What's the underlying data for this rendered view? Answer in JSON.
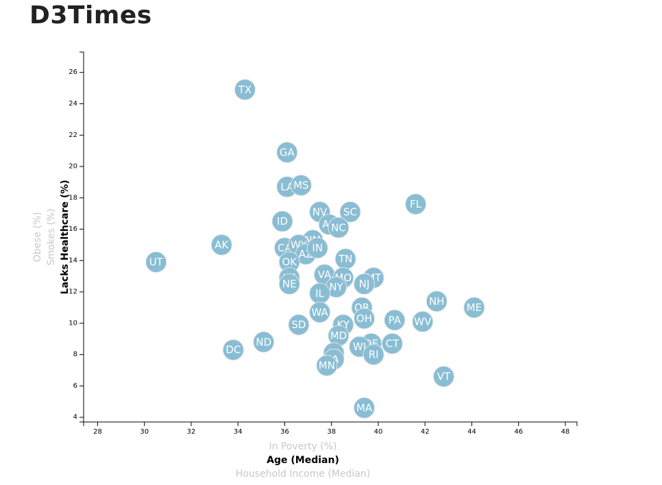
{
  "header": {
    "title": "D3Times"
  },
  "chart_data": {
    "type": "scatter",
    "xlim": [
      27.4,
      48.5
    ],
    "ylim": [
      3.7,
      27.3
    ],
    "x_ticks": [
      28,
      30,
      32,
      34,
      36,
      38,
      40,
      42,
      44,
      46,
      48
    ],
    "y_ticks": [
      4,
      6,
      8,
      10,
      12,
      14,
      16,
      18,
      20,
      22,
      24,
      26
    ],
    "x_axis_labels": [
      {
        "text": "In Poverty (%)",
        "active": false
      },
      {
        "text": "Age (Median)",
        "active": true
      },
      {
        "text": "Household Income (Median)",
        "active": false
      }
    ],
    "y_axis_labels": [
      {
        "text": "Obese (%)",
        "active": false
      },
      {
        "text": "Smokes (%)",
        "active": false
      },
      {
        "text": "Lacks Healthcare (%)",
        "active": true
      }
    ],
    "color": "#89bdd3",
    "points": [
      {
        "label": "TX",
        "x": 34.3,
        "y": 24.9
      },
      {
        "label": "GA",
        "x": 36.1,
        "y": 20.9
      },
      {
        "label": "LA",
        "x": 36.1,
        "y": 18.7
      },
      {
        "label": "MS",
        "x": 36.7,
        "y": 18.8
      },
      {
        "label": "FL",
        "x": 41.6,
        "y": 17.6
      },
      {
        "label": "NV",
        "x": 37.5,
        "y": 17.1
      },
      {
        "label": "SC",
        "x": 38.8,
        "y": 17.1
      },
      {
        "label": "AR",
        "x": 37.9,
        "y": 16.3
      },
      {
        "label": "NC",
        "x": 38.3,
        "y": 16.1
      },
      {
        "label": "ID",
        "x": 35.9,
        "y": 16.5
      },
      {
        "label": "AK",
        "x": 33.3,
        "y": 15.0
      },
      {
        "label": "NM",
        "x": 37.2,
        "y": 15.3
      },
      {
        "label": "CA",
        "x": 36.0,
        "y": 14.8
      },
      {
        "label": "WY",
        "x": 36.6,
        "y": 15.0
      },
      {
        "label": "AZ",
        "x": 36.9,
        "y": 14.4
      },
      {
        "label": "IN",
        "x": 37.4,
        "y": 14.8
      },
      {
        "label": "UT",
        "x": 30.5,
        "y": 13.9
      },
      {
        "label": "OK",
        "x": 36.2,
        "y": 13.9
      },
      {
        "label": "TN",
        "x": 38.6,
        "y": 14.1
      },
      {
        "label": "KS",
        "x": 36.2,
        "y": 12.9
      },
      {
        "label": "NE",
        "x": 36.2,
        "y": 12.5
      },
      {
        "label": "VA",
        "x": 37.7,
        "y": 13.1
      },
      {
        "label": "MO",
        "x": 38.5,
        "y": 12.9
      },
      {
        "label": "MT",
        "x": 39.8,
        "y": 12.9
      },
      {
        "label": "NJ",
        "x": 39.4,
        "y": 12.5
      },
      {
        "label": "NY",
        "x": 38.2,
        "y": 12.3
      },
      {
        "label": "IL",
        "x": 37.5,
        "y": 11.9
      },
      {
        "label": "NH",
        "x": 42.5,
        "y": 11.4
      },
      {
        "label": "ME",
        "x": 44.1,
        "y": 11.0
      },
      {
        "label": "OR",
        "x": 39.3,
        "y": 11.0
      },
      {
        "label": "WA",
        "x": 37.5,
        "y": 10.7
      },
      {
        "label": "OH",
        "x": 39.4,
        "y": 10.3
      },
      {
        "label": "PA",
        "x": 40.7,
        "y": 10.2
      },
      {
        "label": "WV",
        "x": 41.9,
        "y": 10.1
      },
      {
        "label": "SD",
        "x": 36.6,
        "y": 9.9
      },
      {
        "label": "KY",
        "x": 38.5,
        "y": 9.9
      },
      {
        "label": "MD",
        "x": 38.3,
        "y": 9.2
      },
      {
        "label": "ND",
        "x": 35.1,
        "y": 8.8
      },
      {
        "label": "DE",
        "x": 39.7,
        "y": 8.7
      },
      {
        "label": "CT",
        "x": 40.6,
        "y": 8.7
      },
      {
        "label": "WI",
        "x": 39.2,
        "y": 8.5
      },
      {
        "label": "DC",
        "x": 33.8,
        "y": 8.3
      },
      {
        "label": "HI",
        "x": 38.1,
        "y": 8.1
      },
      {
        "label": "RI",
        "x": 39.8,
        "y": 8.0
      },
      {
        "label": "IA",
        "x": 38.1,
        "y": 7.7
      },
      {
        "label": "MN",
        "x": 37.8,
        "y": 7.3
      },
      {
        "label": "VT",
        "x": 42.8,
        "y": 6.6
      },
      {
        "label": "MA",
        "x": 39.4,
        "y": 4.6
      }
    ]
  }
}
